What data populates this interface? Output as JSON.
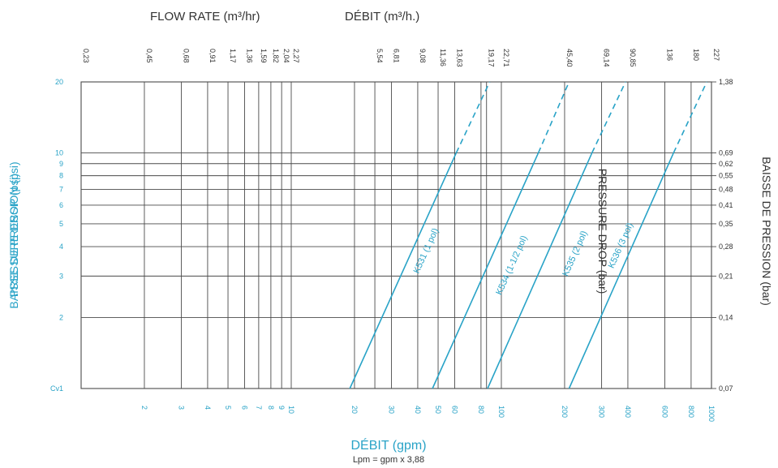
{
  "chart_data": {
    "type": "line",
    "scale": "log-log",
    "grid": true,
    "titles": {
      "top_left": "FLOW RATE (m³/hr)",
      "top_right": "DÉBIT (m³/h.)",
      "bottom_main": "DÉBIT (gpm)",
      "bottom_sub": "Lpm = gpm x 3,88"
    },
    "y_axis_left": {
      "label_main": "PRESSURE DROP (psi)",
      "label_overlap": "BAISSE DE PRESSION (psi)",
      "unit": "psi",
      "range": [
        1,
        20
      ],
      "ticks": [
        {
          "value": 1,
          "label": "Cv1"
        },
        {
          "value": 2,
          "label": "2"
        },
        {
          "value": 3,
          "label": "3"
        },
        {
          "value": 4,
          "label": "4"
        },
        {
          "value": 5,
          "label": "5"
        },
        {
          "value": 6,
          "label": "6"
        },
        {
          "value": 7,
          "label": "7"
        },
        {
          "value": 8,
          "label": "8"
        },
        {
          "value": 9,
          "label": "9"
        },
        {
          "value": 10,
          "label": "10"
        },
        {
          "value": 20,
          "label": "20"
        }
      ]
    },
    "y_axis_right": {
      "label_outer": "BAISSE DE PRESSION (bar)",
      "label_inner": "PRESSURE DROP (bar)",
      "ticks": [
        {
          "value": 1,
          "label": "0,07"
        },
        {
          "value": 2,
          "label": "0,14"
        },
        {
          "value": 3,
          "label": "0,21"
        },
        {
          "value": 4,
          "label": "0,28"
        },
        {
          "value": 5,
          "label": "0,35"
        },
        {
          "value": 6,
          "label": "0,41"
        },
        {
          "value": 7,
          "label": "0,48"
        },
        {
          "value": 8,
          "label": "0,55"
        },
        {
          "value": 9,
          "label": "0,62"
        },
        {
          "value": 10,
          "label": "0,69"
        },
        {
          "value": 20,
          "label": "1,38"
        }
      ]
    },
    "x_axis_bottom": {
      "unit": "gpm",
      "range": [
        1,
        1000
      ],
      "ticks": [
        {
          "value": 2,
          "label": "2"
        },
        {
          "value": 3,
          "label": "3"
        },
        {
          "value": 4,
          "label": "4"
        },
        {
          "value": 5,
          "label": "5"
        },
        {
          "value": 6,
          "label": "6"
        },
        {
          "value": 7,
          "label": "7"
        },
        {
          "value": 8,
          "label": "8"
        },
        {
          "value": 9,
          "label": "9"
        },
        {
          "value": 10,
          "label": "10"
        },
        {
          "value": 20,
          "label": "20"
        },
        {
          "value": 30,
          "label": "30"
        },
        {
          "value": 40,
          "label": "40"
        },
        {
          "value": 50,
          "label": "50"
        },
        {
          "value": 60,
          "label": "60"
        },
        {
          "value": 80,
          "label": "80"
        },
        {
          "value": 100,
          "label": "100"
        },
        {
          "value": 200,
          "label": "200"
        },
        {
          "value": 300,
          "label": "300"
        },
        {
          "value": 400,
          "label": "400"
        },
        {
          "value": 600,
          "label": "600"
        },
        {
          "value": 800,
          "label": "800"
        },
        {
          "value": 1000,
          "label": "1000"
        }
      ]
    },
    "x_axis_top": {
      "unit": "m³/h",
      "ticks": [
        {
          "value": 1,
          "label": "0,23"
        },
        {
          "value": 2,
          "label": "0,45"
        },
        {
          "value": 3,
          "label": "0,68"
        },
        {
          "value": 4,
          "label": "0,91"
        },
        {
          "value": 5,
          "label": "1,17"
        },
        {
          "value": 6,
          "label": "1,36"
        },
        {
          "value": 7,
          "label": "1,59"
        },
        {
          "value": 8,
          "label": "1,82"
        },
        {
          "value": 9,
          "label": "2,04"
        },
        {
          "value": 10,
          "label": "2,27"
        },
        {
          "value": 25,
          "label": "5,54"
        },
        {
          "value": 30,
          "label": "6,81"
        },
        {
          "value": 40,
          "label": "9,08"
        },
        {
          "value": 50,
          "label": "11,36"
        },
        {
          "value": 60,
          "label": "13,63"
        },
        {
          "value": 85,
          "label": "19,17"
        },
        {
          "value": 100,
          "label": "22,71"
        },
        {
          "value": 200,
          "label": "45,40"
        },
        {
          "value": 300,
          "label": "69,14"
        },
        {
          "value": 400,
          "label": "90,85"
        },
        {
          "value": 600,
          "label": "136"
        },
        {
          "value": 800,
          "label": "180"
        },
        {
          "value": 1000,
          "label": "227"
        }
      ]
    },
    "series": [
      {
        "name": "K531 (1 pol)",
        "solid": [
          [
            19,
            1
          ],
          [
            61,
            10
          ]
        ],
        "dashed": [
          [
            61,
            10
          ],
          [
            88,
            20
          ]
        ],
        "label_at": [
          45,
          3.8
        ]
      },
      {
        "name": "K534 (1-1/2 pol)",
        "solid": [
          [
            47,
            1
          ],
          [
            150,
            10
          ]
        ],
        "dashed": [
          [
            150,
            10
          ],
          [
            210,
            20
          ]
        ],
        "label_at": [
          115,
          3.3
        ]
      },
      {
        "name": "K535 (2 pol)",
        "solid": [
          [
            86,
            1
          ],
          [
            270,
            10
          ]
        ],
        "dashed": [
          [
            270,
            10
          ],
          [
            390,
            20
          ]
        ],
        "label_at": [
          230,
          3.7
        ]
      },
      {
        "name": "K536 (3 pol)",
        "solid": [
          [
            210,
            1
          ],
          [
            660,
            10
          ]
        ],
        "dashed": [
          [
            660,
            10
          ],
          [
            950,
            20
          ]
        ],
        "label_at": [
          380,
          4.0
        ]
      }
    ]
  },
  "colors": {
    "grid": "#4a4a4a",
    "curve": "#29a3c7",
    "label_cyan": "#29a3c7",
    "label_dark": "#333333"
  }
}
